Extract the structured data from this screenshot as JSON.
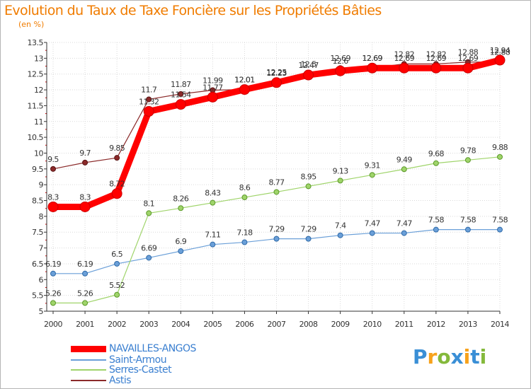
{
  "chart_data": {
    "type": "line",
    "title": "Evolution du Taux de Taxe Foncière sur les Propriétés Bâties",
    "subtitle": "(en %)",
    "xlabel": "",
    "ylabel": "",
    "grid": true,
    "legend_position": "bottom-left",
    "x": [
      "2000",
      "2001",
      "2002",
      "2003",
      "2004",
      "2005",
      "2006",
      "2007",
      "2008",
      "2009",
      "2010",
      "2011",
      "2012",
      "2013",
      "2014"
    ],
    "ylim": [
      5,
      13.5
    ],
    "yticks": [
      "5",
      "5.5",
      "6",
      "6.5",
      "7",
      "7.5",
      "8",
      "8.5",
      "9",
      "9.5",
      "10",
      "10.5",
      "11",
      "11.5",
      "12",
      "12.5",
      "13",
      "13.5"
    ],
    "series": [
      {
        "name": "NAVAILLES-ANGOS",
        "color": "#ff0000",
        "values": [
          8.3,
          8.3,
          8.72,
          11.32,
          11.54,
          11.77,
          12.01,
          12.23,
          12.47,
          12.6,
          12.69,
          12.69,
          12.69,
          12.69,
          12.94
        ],
        "labels": [
          "8.3",
          "8.3",
          "8.72",
          "11.32",
          "11.54",
          "11.77",
          "12.01",
          "12.23",
          "12.47",
          "12.6",
          "12.69",
          "12.69",
          "12.69",
          "12.69",
          "12.94"
        ]
      },
      {
        "name": "Saint-Armou",
        "color": "#6a9fd8",
        "values": [
          6.19,
          6.19,
          6.5,
          6.69,
          6.9,
          7.11,
          7.18,
          7.29,
          7.29,
          7.4,
          7.47,
          7.47,
          7.58,
          7.58,
          7.58
        ],
        "labels": [
          "6.19",
          "6.19",
          "6.5",
          "6.69",
          "6.9",
          "7.11",
          "7.18",
          "7.29",
          "7.29",
          "7.4",
          "7.47",
          "7.47",
          "7.58",
          "7.58",
          "7.58"
        ]
      },
      {
        "name": "Serres-Castet",
        "color": "#9fd46a",
        "values": [
          5.26,
          5.26,
          5.52,
          8.1,
          8.26,
          8.43,
          8.6,
          8.77,
          8.95,
          9.13,
          9.31,
          9.49,
          9.68,
          9.78,
          9.88
        ],
        "labels": [
          "5.26",
          "5.26",
          "5.52",
          "8.1",
          "8.26",
          "8.43",
          "8.6",
          "8.77",
          "8.95",
          "9.13",
          "9.31",
          "9.49",
          "9.68",
          "9.78",
          "9.88"
        ]
      },
      {
        "name": "Astis",
        "color": "#8b2a2a",
        "values": [
          9.5,
          9.7,
          9.85,
          11.7,
          11.87,
          11.99,
          12.01,
          12.25,
          12.5,
          12.69,
          12.69,
          12.82,
          12.82,
          12.88,
          12.88
        ],
        "labels": [
          "9.5",
          "9.7",
          "9.85",
          "11.7",
          "11.87",
          "11.99",
          "12.01",
          "12.25",
          "12.5",
          "12.69",
          "12.69",
          "12.82",
          "12.82",
          "12.88",
          "12.88"
        ]
      }
    ]
  },
  "logo": {
    "letters": [
      "P",
      "r",
      "o",
      "x",
      "i",
      "t",
      "i"
    ],
    "colors": [
      "#3a8fd6",
      "#f7a21b",
      "#84b93b",
      "#3a8fd6",
      "#f7a21b",
      "#3a8fd6",
      "#84b93b"
    ]
  }
}
